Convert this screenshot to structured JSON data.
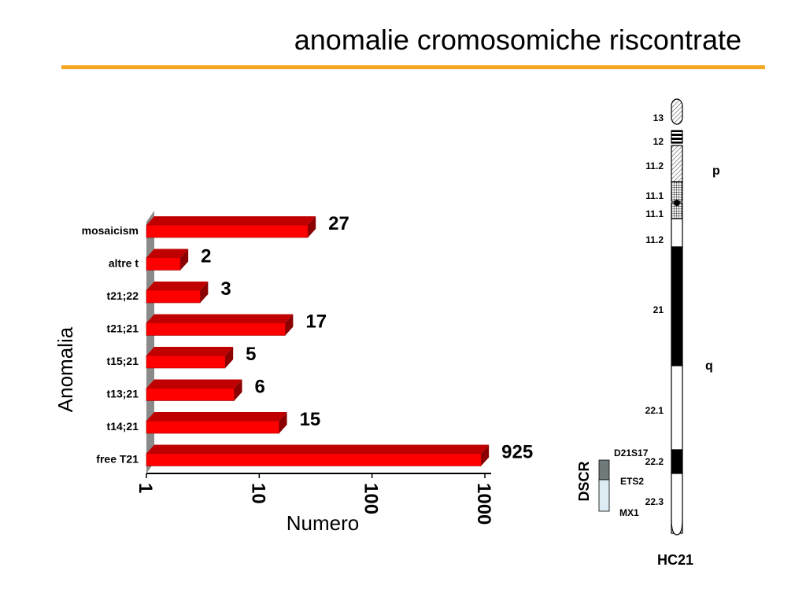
{
  "slide": {
    "title": "anomalie cromosomiche riscontrate",
    "accent_color": "#F5A623"
  },
  "chart_data": {
    "type": "bar",
    "orientation": "horizontal",
    "x_scale": "log",
    "xlim": [
      1,
      1000
    ],
    "x_ticks": [
      "1",
      "10",
      "100",
      "1000"
    ],
    "xlabel": "Numero",
    "ylabel": "Anomalia",
    "categories": [
      "mosaicism",
      "altre t",
      "t21;22",
      "t21;21",
      "t15;21",
      "t13;21",
      "t14;21",
      "free T21"
    ],
    "values": [
      27,
      2,
      3,
      17,
      5,
      6,
      15,
      925
    ],
    "value_labels": [
      "27",
      "2",
      "3",
      "17",
      "5",
      "6",
      "15",
      "925"
    ],
    "bar_color": "#FF0000",
    "grid": false,
    "legend": "none"
  },
  "chromosome": {
    "name": "HC21",
    "arms": {
      "p": "p",
      "q": "q"
    },
    "bands": [
      {
        "label": "13",
        "pattern": "hatched"
      },
      {
        "label": "12",
        "pattern": "dark-stripes"
      },
      {
        "label": "11.2",
        "pattern": "hatched"
      },
      {
        "label": "11.1",
        "pattern": "dotted"
      },
      {
        "label": "11.1",
        "pattern": "dotted"
      },
      {
        "label": "11.2",
        "pattern": "white"
      },
      {
        "label": "21",
        "pattern": "black"
      },
      {
        "label": "22.1",
        "pattern": "white"
      },
      {
        "label": "22.2",
        "pattern": "black"
      },
      {
        "label": "22.3",
        "pattern": "white"
      }
    ],
    "region": {
      "label": "DSCR",
      "markers": [
        "D21S17",
        "ETS2",
        "MX1"
      ]
    }
  }
}
